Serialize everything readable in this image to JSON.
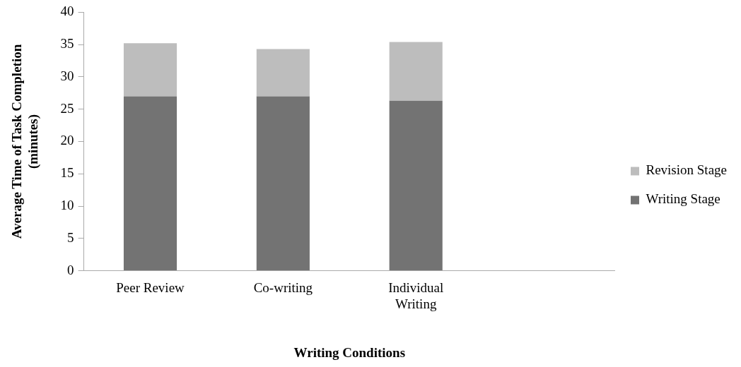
{
  "chart_data": {
    "type": "bar",
    "stacked": true,
    "xlabel": "Writing Conditions",
    "ylabel": "Average Time of Task Completion (minutes)",
    "categories": [
      "Peer Review",
      "Co-writing",
      "Individual Writing",
      null
    ],
    "series": [
      {
        "name": "Writing Stage",
        "color": "#737373",
        "values": [
          27.0,
          27.0,
          26.3,
          null
        ]
      },
      {
        "name": "Revision Stage",
        "color": "#bdbdbd",
        "values": [
          8.2,
          7.3,
          9.1,
          null
        ]
      }
    ],
    "ylim": [
      0,
      40
    ],
    "yticks": [
      0,
      5,
      10,
      15,
      20,
      25,
      30,
      35,
      40
    ],
    "grid": false,
    "legend": "right"
  }
}
